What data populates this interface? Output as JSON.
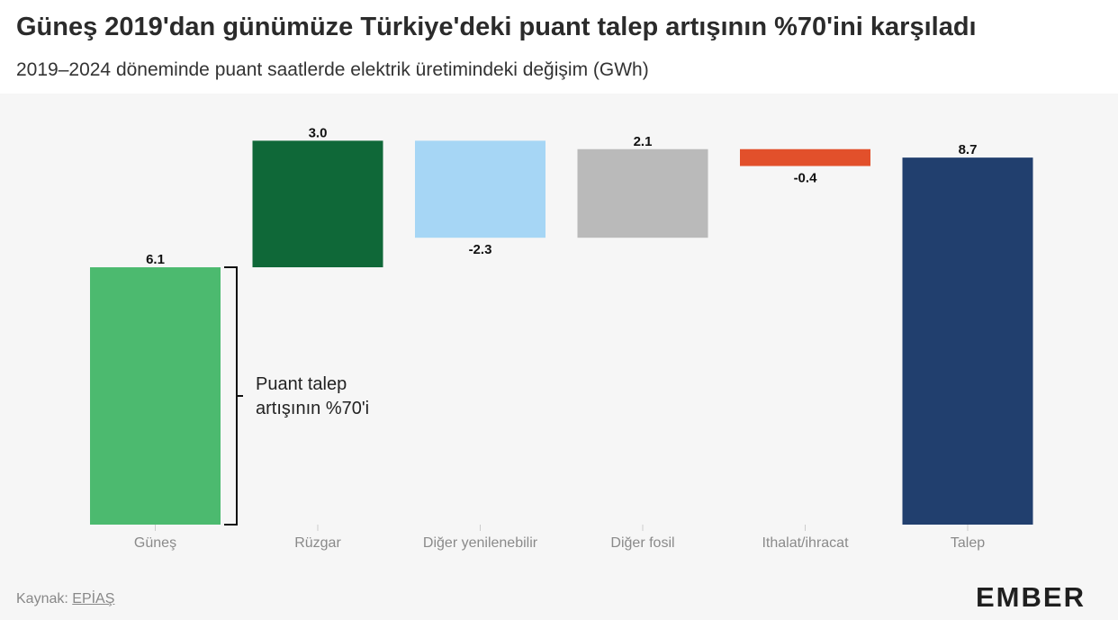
{
  "header": {
    "title": "Güneş 2019'dan günümüze Türkiye'deki puant talep artışının %70'ini karşıladı",
    "subtitle": "2019–2024 döneminde puant saatlerde elektrik üretimindeki değişim (GWh)"
  },
  "chart_data": {
    "type": "bar",
    "subtype": "waterfall",
    "categories": [
      "Güneş",
      "Rüzgar",
      "Diğer yenilenebilir",
      "Diğer fosil",
      "Ithalat/ihracat",
      "Talep"
    ],
    "values": [
      6.1,
      3.0,
      -2.3,
      2.1,
      -0.4,
      8.7
    ],
    "value_labels": [
      "6.1",
      "3.0",
      "-2.3",
      "2.1",
      "-0.4",
      "8.7"
    ],
    "colors": [
      "#4cba6f",
      "#0f6838",
      "#a6d6f5",
      "#bababa",
      "#e2502b",
      "#213f6e"
    ],
    "total_index": 5,
    "ylim": [
      0,
      9.3
    ],
    "grid": false,
    "annotation": {
      "line1": "Puant talep",
      "line2": "artışının %70'i"
    }
  },
  "footer": {
    "source_label": "Kaynak:",
    "source_link": "EPİAŞ",
    "logo": "EMBER"
  }
}
